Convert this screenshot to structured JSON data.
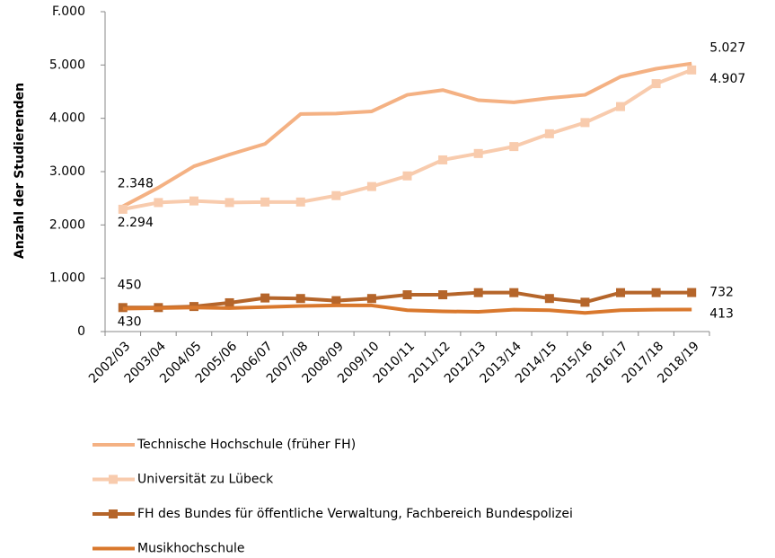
{
  "chart_data": {
    "type": "line",
    "y_label": "Anzahl der Studierenden",
    "categories": [
      "2002/03",
      "2003/04",
      "2004/05",
      "2005/06",
      "2006/07",
      "2007/08",
      "2008/09",
      "2009/10",
      "2010/11",
      "2011/12",
      "2012/13",
      "2013/14",
      "2014/15",
      "2015/16",
      "2016/17",
      "2017/18",
      "2018/19"
    ],
    "ylim": [
      0,
      6000
    ],
    "yticks": [
      0,
      {
        "value": 1000,
        "label": "1.000"
      },
      {
        "value": 2000,
        "label": "2.000"
      },
      {
        "value": 3000,
        "label": "3.000"
      },
      {
        "value": 4000,
        "label": "4.000"
      },
      {
        "value": 5000,
        "label": "5.000"
      },
      {
        "value": 6000,
        "label": "F.000"
      }
    ],
    "series": [
      {
        "name": "Technische Hochschule (früher FH)",
        "color": "#f4b183",
        "marker": "none",
        "values": [
          2348,
          2700,
          3100,
          3320,
          3520,
          4080,
          4090,
          4130,
          4440,
          4530,
          4340,
          4300,
          4380,
          4440,
          4780,
          4930,
          5027
        ],
        "value_labels": [
          "2.348",
          null,
          null,
          null,
          null,
          null,
          null,
          null,
          null,
          null,
          null,
          null,
          null,
          null,
          null,
          null,
          "5.027"
        ]
      },
      {
        "name": "Universität zu Lübeck",
        "color": "#f8cbad",
        "marker": "square",
        "values": [
          2294,
          2420,
          2450,
          2420,
          2430,
          2430,
          2550,
          2720,
          2920,
          3220,
          3340,
          3470,
          3710,
          3920,
          4220,
          4650,
          4907
        ],
        "value_labels": [
          "2.294",
          null,
          null,
          null,
          null,
          null,
          null,
          null,
          null,
          null,
          null,
          null,
          null,
          null,
          null,
          null,
          "4.907"
        ]
      },
      {
        "name": "FH des Bundes für öffentliche Verwaltung, Fachbereich Bundespolizei",
        "color": "#b5652a",
        "marker": "square",
        "values": [
          450,
          450,
          470,
          540,
          630,
          620,
          580,
          620,
          690,
          690,
          730,
          730,
          620,
          550,
          730,
          730,
          732
        ],
        "value_labels": [
          "450",
          null,
          null,
          null,
          null,
          null,
          null,
          null,
          null,
          null,
          null,
          null,
          null,
          null,
          null,
          null,
          "732"
        ]
      },
      {
        "name": "Musikhochschule",
        "color": "#d9782d",
        "marker": "none",
        "values": [
          430,
          440,
          450,
          440,
          460,
          480,
          490,
          490,
          400,
          380,
          370,
          410,
          400,
          350,
          400,
          410,
          413
        ],
        "value_labels": [
          "430",
          null,
          null,
          null,
          null,
          null,
          null,
          null,
          null,
          null,
          null,
          null,
          null,
          null,
          null,
          null,
          "413"
        ]
      }
    ]
  }
}
